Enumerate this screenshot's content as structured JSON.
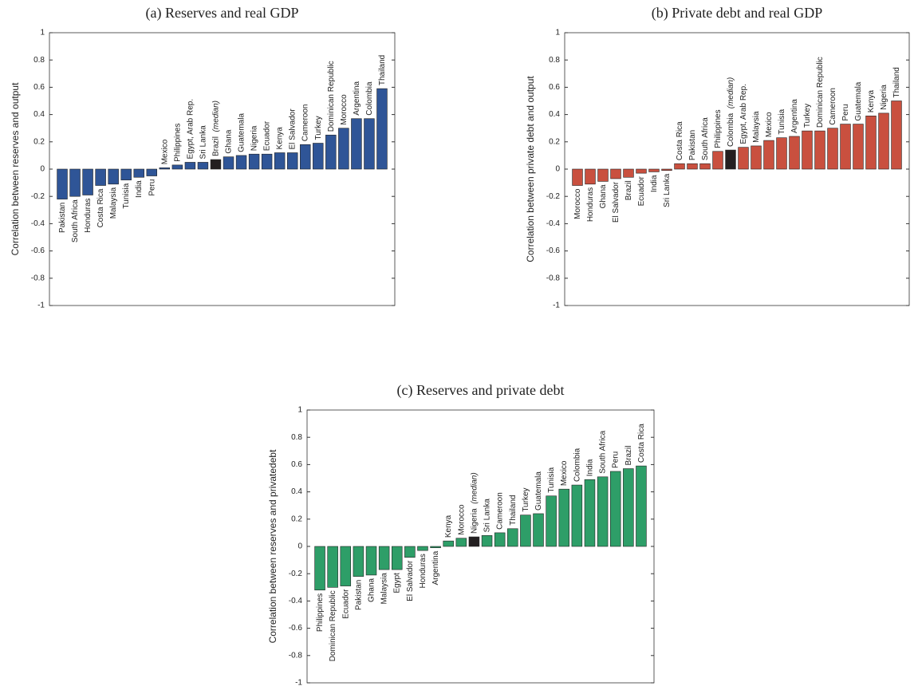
{
  "chart_data": [
    {
      "type": "bar",
      "title": "(a) Reserves and real GDP",
      "ylabel": "Correlation between reserves and output",
      "categories": [
        "Pakistan",
        "South Africa",
        "Honduras",
        "Costa Rica",
        "Malaysia",
        "Tunisia",
        "India",
        "Peru",
        "Mexico",
        "Philippines",
        "Egypt, Arab Rep.",
        "Sri Lanka",
        "Brazil",
        "Ghana",
        "Guatemala",
        "Nigeria",
        "Ecuador",
        "Kenya",
        "El Salvador",
        "Cameroon",
        "Turkey",
        "Dominican Republic",
        "Morocco",
        "Argentina",
        "Colombia",
        "Thailand"
      ],
      "values": [
        -0.22,
        -0.2,
        -0.19,
        -0.12,
        -0.11,
        -0.08,
        -0.06,
        -0.05,
        0.01,
        0.03,
        0.05,
        0.05,
        0.07,
        0.09,
        0.1,
        0.11,
        0.11,
        0.12,
        0.12,
        0.18,
        0.19,
        0.25,
        0.3,
        0.37,
        0.37,
        0.59
      ],
      "color": "#2f5597",
      "highlight_index": 12,
      "highlight_color": "#231f20",
      "highlight_note": "(median)",
      "ylim": [
        -1,
        1
      ],
      "yticks": [
        -1,
        -0.8,
        -0.6,
        -0.4,
        -0.2,
        0,
        0.2,
        0.4,
        0.6,
        0.8,
        1
      ]
    },
    {
      "type": "bar",
      "title": "(b) Private debt and real GDP",
      "ylabel": "Correlation between private debt and output",
      "categories": [
        "Morocco",
        "Honduras",
        "Ghana",
        "El Salvador",
        "Brazil",
        "Ecuador",
        "India",
        "Sri Lanka",
        "Costa Rica",
        "Pakistan",
        "South Africa",
        "Philippines",
        "Colombia",
        "Egypt, Arab Rep.",
        "Malaysia",
        "Mexico",
        "Tunisia",
        "Argentina",
        "Turkey",
        "Dominican Republic",
        "Cameroon",
        "Peru",
        "Guatemala",
        "Kenya",
        "Nigeria",
        "Thailand"
      ],
      "values": [
        -0.12,
        -0.11,
        -0.09,
        -0.07,
        -0.06,
        -0.03,
        -0.02,
        -0.01,
        0.04,
        0.04,
        0.04,
        0.13,
        0.14,
        0.16,
        0.17,
        0.21,
        0.23,
        0.24,
        0.28,
        0.28,
        0.3,
        0.33,
        0.33,
        0.39,
        0.41,
        0.5
      ],
      "color": "#c9503f",
      "highlight_index": 12,
      "highlight_color": "#231f20",
      "highlight_note": "(median)",
      "ylim": [
        -1,
        1
      ],
      "yticks": [
        -1,
        -0.8,
        -0.6,
        -0.4,
        -0.2,
        0,
        0.2,
        0.4,
        0.6,
        0.8,
        1
      ]
    },
    {
      "type": "bar",
      "title": "(c) Reserves and private debt",
      "ylabel": "Correlation between reserves and privatedebt",
      "categories": [
        "Philippines",
        "Dominican Republic",
        "Ecuador",
        "Pakistan",
        "Ghana",
        "Malaysia",
        "Egypt",
        "El Salvador",
        "Honduras",
        "Argentina",
        "Kenya",
        "Morocco",
        "Nigeria",
        "Sri Lanka",
        "Cameroon",
        "Thailand",
        "Turkey",
        "Guatemala",
        "Tunisia",
        "Mexico",
        "Colombia",
        "India",
        "South Africa",
        "Peru",
        "Brazil",
        "Costa Rica"
      ],
      "values": [
        -0.32,
        -0.3,
        -0.29,
        -0.22,
        -0.21,
        -0.17,
        -0.17,
        -0.08,
        -0.03,
        -0.01,
        0.04,
        0.06,
        0.07,
        0.08,
        0.1,
        0.13,
        0.23,
        0.24,
        0.37,
        0.42,
        0.45,
        0.49,
        0.51,
        0.55,
        0.57,
        0.59
      ],
      "color": "#2e9e68",
      "highlight_index": 12,
      "highlight_color": "#231f20",
      "highlight_note": "(median)",
      "ylim": [
        -1,
        1
      ],
      "yticks": [
        -1,
        -0.8,
        -0.6,
        -0.4,
        -0.2,
        0,
        0.2,
        0.4,
        0.6,
        0.8,
        1
      ]
    }
  ]
}
